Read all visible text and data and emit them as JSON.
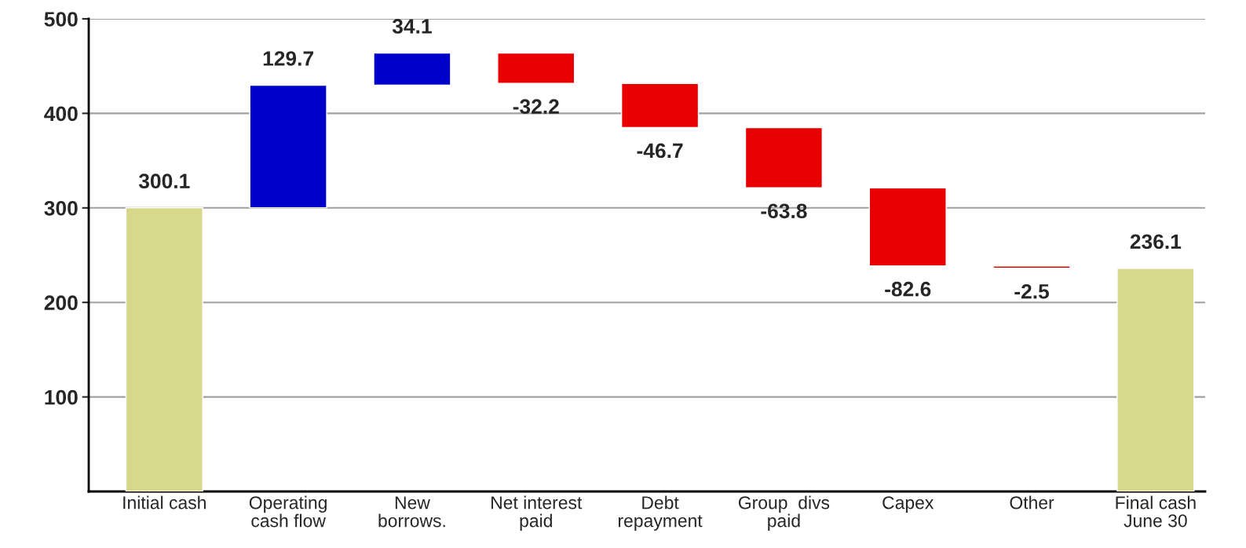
{
  "chart_data": {
    "type": "bar",
    "categories": [
      "Initial cash",
      "Operating\ncash flow",
      "New\nborrows.",
      "Net interest\npaid",
      "Debt\nrepayment",
      "Group  divs\npaid",
      "Capex",
      "Other",
      "Final cash\nJune 30"
    ],
    "values": [
      300.1,
      129.7,
      34.1,
      -32.2,
      -46.7,
      -63.8,
      -82.6,
      -2.5,
      236.1
    ],
    "base": [
      0,
      300.1,
      429.8,
      463.9,
      431.7,
      385.0,
      321.2,
      238.6,
      0
    ],
    "colors": [
      "#d8d88a",
      "#0000cc",
      "#0000cc",
      "#e80000",
      "#e80000",
      "#e80000",
      "#e80000",
      "#e80000",
      "#d8d88a"
    ],
    "ylim": [
      0,
      500
    ],
    "yticks": [
      100,
      200,
      300,
      400,
      500
    ],
    "grid": "y",
    "data_labels": true
  }
}
